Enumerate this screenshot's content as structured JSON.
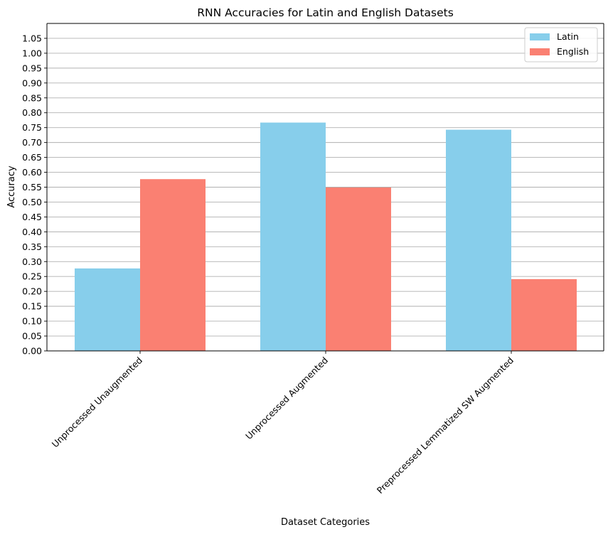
{
  "chart_data": {
    "type": "bar",
    "title": "RNN Accuracies for Latin and English Datasets",
    "xlabel": "Dataset Categories",
    "ylabel": "Accuracy",
    "categories": [
      "Unprocessed Unaugmented",
      "Unprocessed Augmented",
      "Preprocessed Lemmatized SW Augmented"
    ],
    "series": [
      {
        "name": "Latin",
        "values": [
          0.277,
          0.767,
          0.743
        ],
        "color": "#87CEEB"
      },
      {
        "name": "English",
        "values": [
          0.577,
          0.549,
          0.241
        ],
        "color": "#FA8072"
      }
    ],
    "ylim": [
      0,
      1.1
    ],
    "yticks": [
      "0.00",
      "0.05",
      "0.10",
      "0.15",
      "0.20",
      "0.25",
      "0.30",
      "0.35",
      "0.40",
      "0.45",
      "0.50",
      "0.55",
      "0.60",
      "0.65",
      "0.70",
      "0.75",
      "0.80",
      "0.85",
      "0.90",
      "0.95",
      "1.00",
      "1.05"
    ],
    "grid": "y-major",
    "legend": "top-right"
  }
}
